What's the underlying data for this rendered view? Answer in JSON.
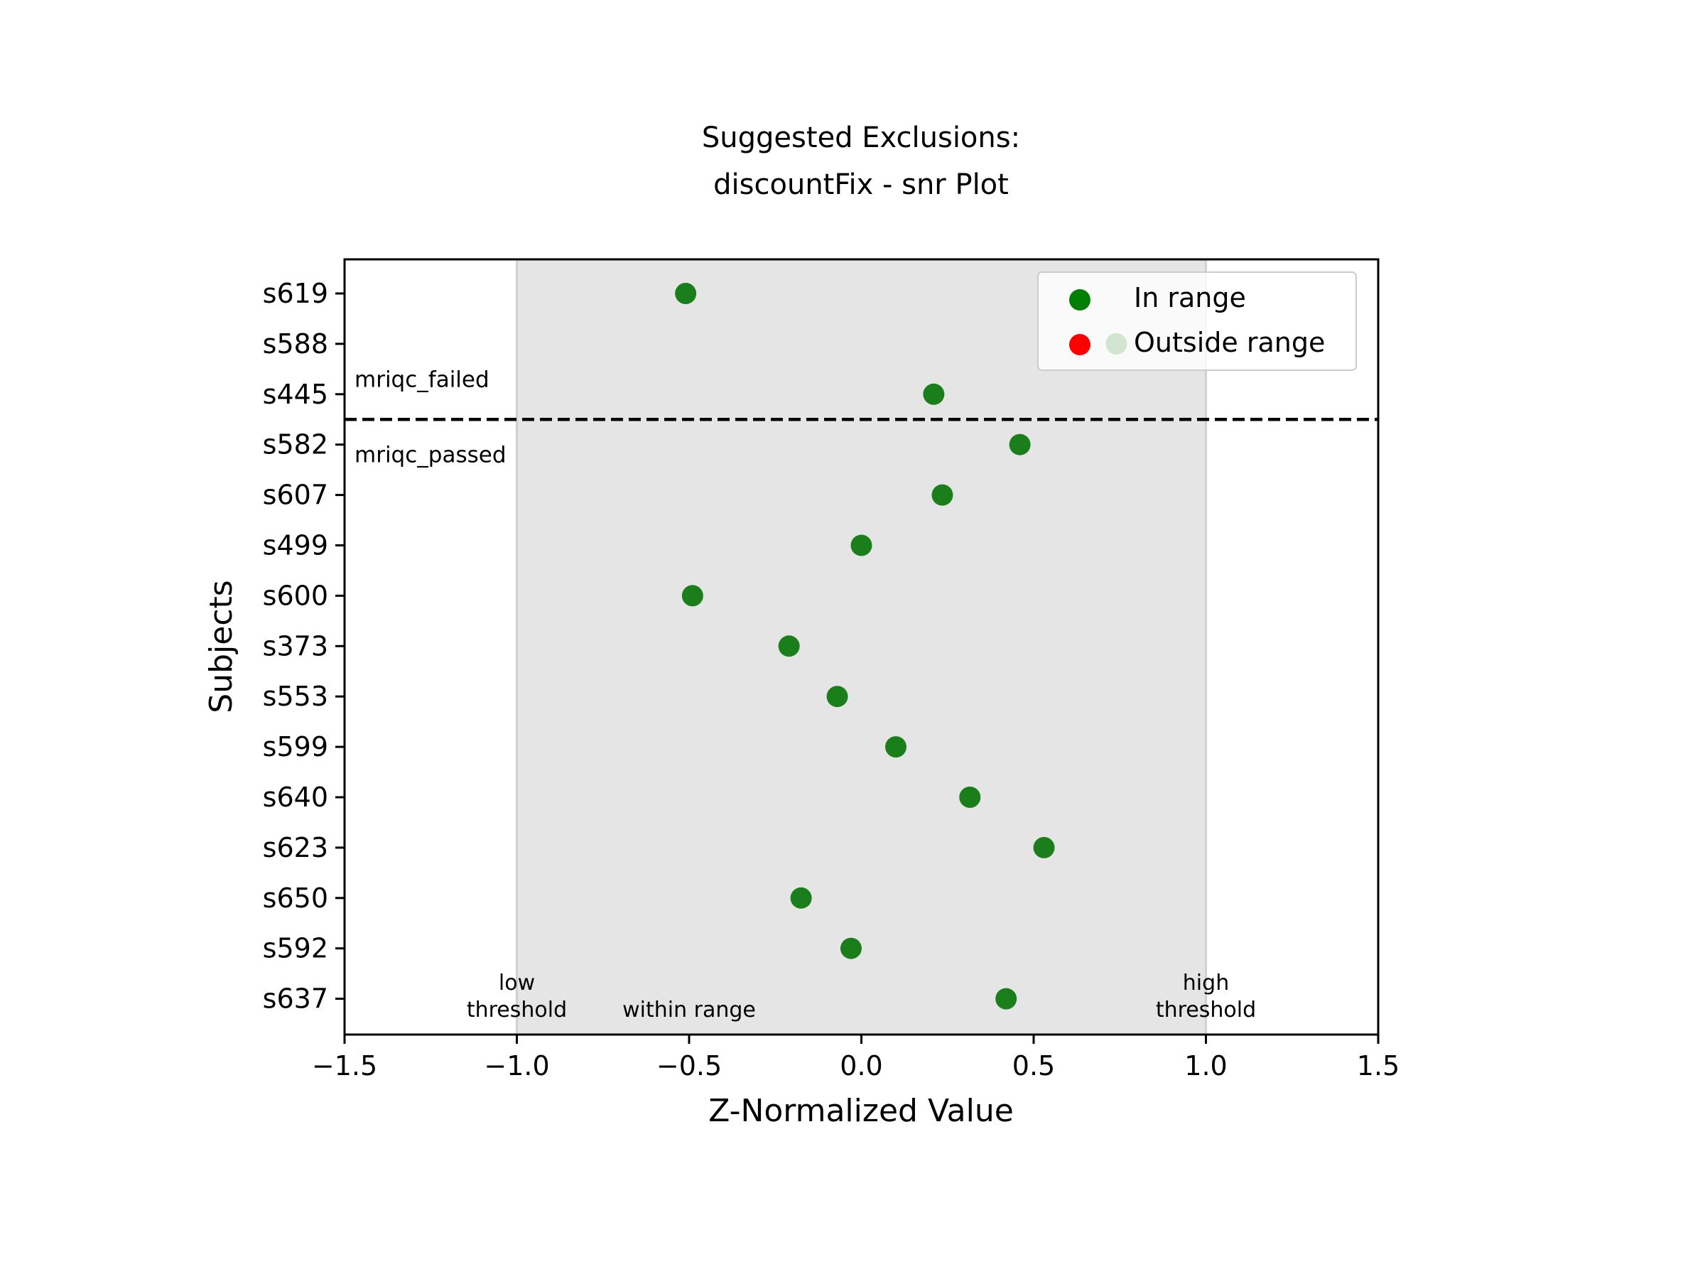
{
  "chart_data": {
    "type": "scatter",
    "title": [
      "Suggested Exclusions:",
      "discountFix - snr Plot"
    ],
    "xlabel": "Z-Normalized Value",
    "ylabel": "Subjects",
    "xlim": [
      -1.5,
      1.5
    ],
    "x_ticks": [
      -1.5,
      -1.0,
      -0.5,
      0.0,
      0.5,
      1.0,
      1.5
    ],
    "x_tick_labels": [
      "−1.5",
      "−1.0",
      "−0.5",
      "0.0",
      "0.5",
      "1.0",
      "1.5"
    ],
    "subjects": [
      "s619",
      "s588",
      "s445",
      "s582",
      "s607",
      "s499",
      "s600",
      "s373",
      "s553",
      "s599",
      "s640",
      "s623",
      "s650",
      "s592",
      "s637"
    ],
    "points": [
      {
        "subject": "s619",
        "x": -0.51,
        "status": "In range"
      },
      {
        "subject": "s588",
        "x": 0.74,
        "status": "In range"
      },
      {
        "subject": "s445",
        "x": 0.21,
        "status": "In range"
      },
      {
        "subject": "s582",
        "x": 0.46,
        "status": "In range"
      },
      {
        "subject": "s607",
        "x": 0.235,
        "status": "In range"
      },
      {
        "subject": "s499",
        "x": 0.0,
        "status": "In range"
      },
      {
        "subject": "s600",
        "x": -0.49,
        "status": "In range"
      },
      {
        "subject": "s373",
        "x": -0.21,
        "status": "In range"
      },
      {
        "subject": "s553",
        "x": -0.07,
        "status": "In range"
      },
      {
        "subject": "s599",
        "x": 0.1,
        "status": "In range"
      },
      {
        "subject": "s640",
        "x": 0.315,
        "status": "In range"
      },
      {
        "subject": "s623",
        "x": 0.53,
        "status": "In range"
      },
      {
        "subject": "s650",
        "x": -0.175,
        "status": "In range"
      },
      {
        "subject": "s592",
        "x": -0.03,
        "status": "In range"
      },
      {
        "subject": "s637",
        "x": 0.42,
        "status": "In range"
      }
    ],
    "range_band": {
      "low": -1.0,
      "high": 1.0,
      "color": "#e5e5e5",
      "edge_color": "#d0d0d0"
    },
    "threshold_labels": {
      "low": [
        "low",
        "threshold"
      ],
      "within": "within range",
      "high": [
        "high",
        "threshold"
      ]
    },
    "separator": {
      "between": [
        "s445",
        "s582"
      ],
      "style": "dashed",
      "label_above": "mriqc_failed",
      "label_below": "mriqc_passed"
    },
    "legend": {
      "position": "top-right",
      "entries": [
        {
          "label": "In range",
          "color": "#008000"
        },
        {
          "label": "Outside range",
          "color": "#ff0000"
        }
      ]
    },
    "colors": {
      "in_range": "#1a7f1a",
      "outside_range": "#ff0000",
      "axis": "#000000"
    },
    "grid": false
  }
}
